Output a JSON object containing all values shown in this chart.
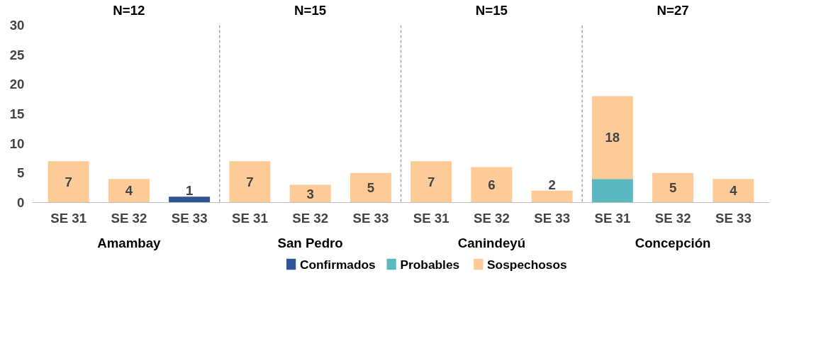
{
  "chart_data": {
    "type": "bar",
    "stacked": true,
    "categories": [
      "SE 31",
      "SE 32",
      "SE 33",
      "SE 31",
      "SE 32",
      "SE 33",
      "SE 31",
      "SE 32",
      "SE 33",
      "SE 31",
      "SE 32",
      "SE 33"
    ],
    "series": [
      {
        "name": "Confirmados",
        "color": "#2f5597",
        "values": [
          0,
          0,
          1,
          0,
          0,
          0,
          0,
          0,
          0,
          0,
          0,
          0
        ]
      },
      {
        "name": "Probables",
        "color": "#5bb8c1",
        "values": [
          0,
          0,
          0,
          0,
          0,
          0,
          0,
          0,
          0,
          4,
          0,
          0
        ]
      },
      {
        "name": "Sospechosos",
        "color": "#fccb98",
        "values": [
          7,
          4,
          0,
          7,
          3,
          5,
          7,
          6,
          2,
          14,
          5,
          4
        ]
      }
    ],
    "totals": [
      "7",
      "4",
      "1",
      "7",
      "3",
      "5",
      "7",
      "6",
      "2",
      "18",
      "5",
      "4"
    ],
    "annotations": [
      "Amambay",
      "San Pedro",
      "Canindeyú",
      "Concepción",
      "N=12",
      "N=15",
      "N=15",
      "N=27"
    ],
    "ylim": [
      0,
      30
    ],
    "yticks": [
      0,
      5,
      10,
      15,
      20,
      25,
      30
    ],
    "grid": false,
    "legend": "bottom"
  }
}
